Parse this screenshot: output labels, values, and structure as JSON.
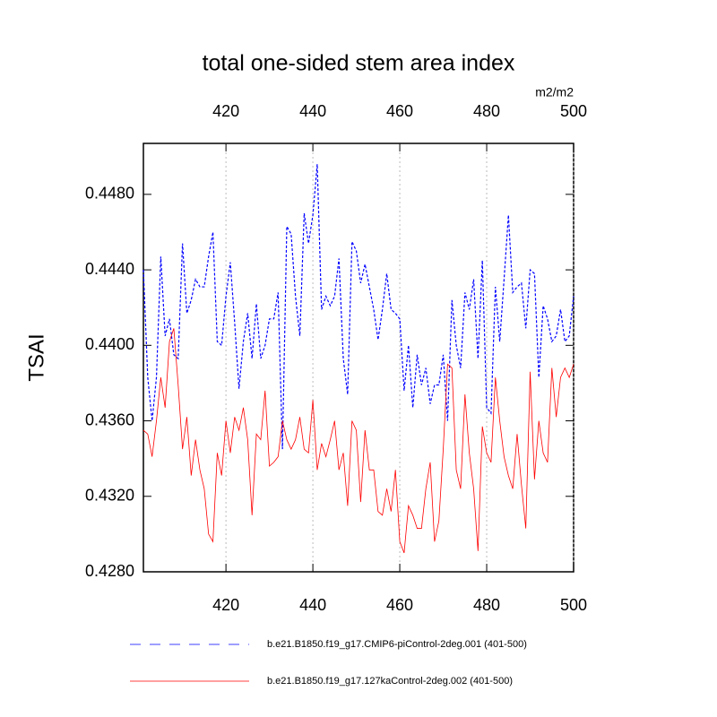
{
  "chart_data": {
    "type": "line",
    "title": "total one-sided stem area index",
    "units": "m2/m2",
    "y_label": "TSAI",
    "x": [
      401,
      402,
      403,
      404,
      405,
      406,
      407,
      408,
      409,
      410,
      411,
      412,
      413,
      414,
      415,
      416,
      417,
      418,
      419,
      420,
      421,
      422,
      423,
      424,
      425,
      426,
      427,
      428,
      429,
      430,
      431,
      432,
      433,
      434,
      435,
      436,
      437,
      438,
      439,
      440,
      441,
      442,
      443,
      444,
      445,
      446,
      447,
      448,
      449,
      450,
      451,
      452,
      453,
      454,
      455,
      456,
      457,
      458,
      459,
      460,
      461,
      462,
      463,
      464,
      465,
      466,
      467,
      468,
      469,
      470,
      471,
      472,
      473,
      474,
      475,
      476,
      477,
      478,
      479,
      480,
      481,
      482,
      483,
      484,
      485,
      486,
      487,
      488,
      489,
      490,
      491,
      492,
      493,
      494,
      495,
      496,
      497,
      498,
      499,
      500
    ],
    "series": [
      {
        "name": "b.e21.B1850.f19_g17.CMIP6-piControl-2deg.001 (401-500)",
        "color": "#0000ff",
        "dash": true,
        "values": [
          0.444,
          0.4383,
          0.436,
          0.4383,
          0.4447,
          0.4405,
          0.4414,
          0.4395,
          0.4393,
          0.4454,
          0.4417,
          0.4424,
          0.4435,
          0.4431,
          0.4431,
          0.4447,
          0.446,
          0.4402,
          0.44,
          0.4426,
          0.4444,
          0.4412,
          0.4377,
          0.4402,
          0.4417,
          0.4393,
          0.4422,
          0.4393,
          0.44,
          0.4414,
          0.4414,
          0.4428,
          0.4345,
          0.4463,
          0.4459,
          0.4426,
          0.4405,
          0.447,
          0.4454,
          0.4469,
          0.4496,
          0.4419,
          0.4426,
          0.4421,
          0.4426,
          0.4446,
          0.4393,
          0.4374,
          0.4455,
          0.445,
          0.4433,
          0.4443,
          0.4431,
          0.4419,
          0.4403,
          0.4419,
          0.4438,
          0.4419,
          0.4417,
          0.4414,
          0.4376,
          0.44,
          0.4367,
          0.4395,
          0.4379,
          0.4388,
          0.4369,
          0.4379,
          0.4379,
          0.4395,
          0.436,
          0.4424,
          0.44,
          0.4388,
          0.4428,
          0.4419,
          0.4435,
          0.4393,
          0.4445,
          0.4367,
          0.4364,
          0.4431,
          0.4402,
          0.4435,
          0.4469,
          0.4428,
          0.4431,
          0.4433,
          0.4409,
          0.444,
          0.4438,
          0.4383,
          0.4421,
          0.4414,
          0.4402,
          0.4405,
          0.4419,
          0.4402,
          0.4405,
          0.4426
        ]
      },
      {
        "name": "b.e21.B1850.f19_g17.127kaControl-2deg.002 (401-500)",
        "color": "#ff0000",
        "dash": false,
        "values": [
          0.4355,
          0.4353,
          0.4341,
          0.436,
          0.4383,
          0.4367,
          0.4402,
          0.4409,
          0.4379,
          0.4345,
          0.4362,
          0.4331,
          0.435,
          0.4334,
          0.4324,
          0.43,
          0.4296,
          0.4343,
          0.4331,
          0.436,
          0.4343,
          0.4362,
          0.4355,
          0.4367,
          0.435,
          0.431,
          0.4353,
          0.435,
          0.4376,
          0.4336,
          0.4338,
          0.4341,
          0.436,
          0.435,
          0.4345,
          0.435,
          0.4362,
          0.4345,
          0.4343,
          0.4371,
          0.4334,
          0.4348,
          0.4341,
          0.435,
          0.436,
          0.4334,
          0.4343,
          0.4315,
          0.436,
          0.4355,
          0.4317,
          0.4355,
          0.4334,
          0.4334,
          0.4312,
          0.431,
          0.4324,
          0.4312,
          0.4334,
          0.4296,
          0.429,
          0.4315,
          0.431,
          0.4303,
          0.4303,
          0.4324,
          0.4338,
          0.4296,
          0.4307,
          0.4345,
          0.439,
          0.4388,
          0.4334,
          0.4324,
          0.4374,
          0.4343,
          0.4324,
          0.4291,
          0.4357,
          0.4343,
          0.4338,
          0.4383,
          0.436,
          0.4341,
          0.4331,
          0.4324,
          0.4353,
          0.4326,
          0.4303,
          0.4386,
          0.4329,
          0.436,
          0.4343,
          0.4338,
          0.4388,
          0.4362,
          0.4383,
          0.4388,
          0.4383,
          0.439
        ]
      }
    ],
    "xlim": [
      401,
      500
    ],
    "xticks": [
      420,
      440,
      460,
      480,
      500
    ],
    "top_axis_color": "#0000ff",
    "bottom_axis_color": "#ff0000",
    "ylim": [
      0.428,
      0.4507
    ],
    "yticks": [
      {
        "value": 0.428,
        "label": "0.4280"
      },
      {
        "value": 0.432,
        "label": "0.4320"
      },
      {
        "value": 0.436,
        "label": "0.4360"
      },
      {
        "value": 0.44,
        "label": "0.4400"
      },
      {
        "value": 0.444,
        "label": "0.4440"
      },
      {
        "value": 0.448,
        "label": "0.4480"
      }
    ],
    "x_grid": true,
    "legend": "bottom"
  }
}
